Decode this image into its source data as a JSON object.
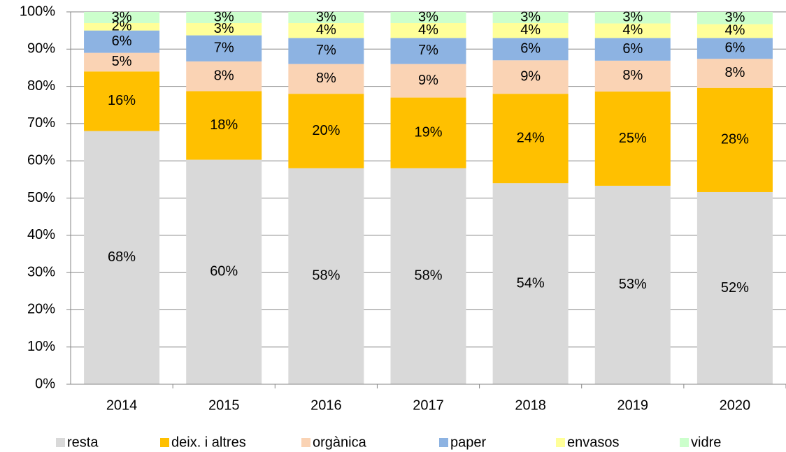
{
  "chart_data": {
    "type": "bar",
    "stacked": true,
    "categories": [
      "2014",
      "2015",
      "2016",
      "2017",
      "2018",
      "2019",
      "2020"
    ],
    "series": [
      {
        "name": "resta",
        "color": "#d9d9d9",
        "values": [
          68,
          60.3,
          58,
          58,
          54,
          53.3,
          51.6
        ],
        "value_labels": [
          "68%",
          "60%",
          "58%",
          "58%",
          "54%",
          "53%",
          "52%"
        ]
      },
      {
        "name": "deix. i altres",
        "color": "#ffc000",
        "values": [
          16,
          18.4,
          20,
          19,
          24,
          25.3,
          28
        ],
        "value_labels": [
          "16%",
          "18%",
          "20%",
          "19%",
          "24%",
          "25%",
          "28%"
        ]
      },
      {
        "name": "orgànica",
        "color": "#fad3b4",
        "values": [
          5,
          8,
          8,
          9,
          9,
          8.3,
          7.8
        ],
        "value_labels": [
          "5%",
          "8%",
          "8%",
          "9%",
          "9%",
          "8%",
          "8%"
        ]
      },
      {
        "name": "paper",
        "color": "#8db3e2",
        "values": [
          6,
          7,
          7,
          7,
          6,
          6.1,
          5.6
        ],
        "value_labels": [
          "6%",
          "7%",
          "7%",
          "7%",
          "6%",
          "6%",
          "6%"
        ]
      },
      {
        "name": "envasos",
        "color": "#ffff99",
        "values": [
          2,
          3.3,
          4,
          4,
          4,
          3.9,
          3.7
        ],
        "value_labels": [
          "2%",
          "3%",
          "4%",
          "4%",
          "4%",
          "4%",
          "4%"
        ]
      },
      {
        "name": "vidre",
        "color": "#ccffcc",
        "values": [
          3,
          3,
          3,
          3,
          3,
          3.1,
          3.3
        ],
        "value_labels": [
          "3%",
          "3%",
          "3%",
          "3%",
          "3%",
          "3%",
          "3%"
        ]
      }
    ],
    "ylim": [
      0,
      100
    ],
    "yticks": [
      {
        "value": 0,
        "label": "0%"
      },
      {
        "value": 10,
        "label": "10%"
      },
      {
        "value": 20,
        "label": "20%"
      },
      {
        "value": 30,
        "label": "30%"
      },
      {
        "value": 40,
        "label": "40%"
      },
      {
        "value": 50,
        "label": "50%"
      },
      {
        "value": 60,
        "label": "60%"
      },
      {
        "value": 70,
        "label": "70%"
      },
      {
        "value": 80,
        "label": "80%"
      },
      {
        "value": 90,
        "label": "90%"
      },
      {
        "value": 100,
        "label": "100%"
      }
    ],
    "grid": true,
    "legend": "bottom"
  }
}
